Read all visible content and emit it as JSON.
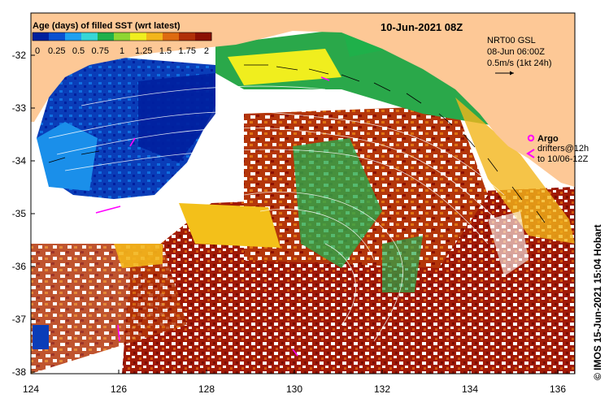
{
  "map": {
    "date_title": "10-Jun-2021 08Z",
    "legend": {
      "title": "Age (days) of filled SST (wrt latest)",
      "ticks": [
        "0",
        "0.25",
        "0.5",
        "0.75",
        "1",
        "1.25",
        "1.5",
        "1.75",
        "2"
      ],
      "colors": [
        "#001f9e",
        "#0a4fd0",
        "#1fa0f0",
        "#36d6d6",
        "#1fb04a",
        "#8ed631",
        "#f0ee1e",
        "#f3b51a",
        "#de6a10",
        "#b02f07",
        "#8c1003"
      ]
    },
    "velocity_note": {
      "line1": "NRT00 GSL",
      "line2": "08-Jun 06:00Z",
      "line3": "0.5m/s (1kt 24h)"
    },
    "argo_legend": {
      "argo_label": "Argo",
      "drifter_line1": "drifters@12h",
      "drifter_line2": "to 10/06-12Z",
      "argo_color": "#ff00ff",
      "drifter_color": "#ff00ff"
    },
    "y_axis_labels": [
      "-32",
      "-33",
      "-34",
      "-35",
      "-36",
      "-37",
      "-38"
    ],
    "x_axis_labels": [
      "124",
      "126",
      "128",
      "130",
      "132",
      "134",
      "136"
    ],
    "credit": "© IMOS 15-Jun-2021 15:04 Hobart",
    "land_color": "#fdc896"
  }
}
